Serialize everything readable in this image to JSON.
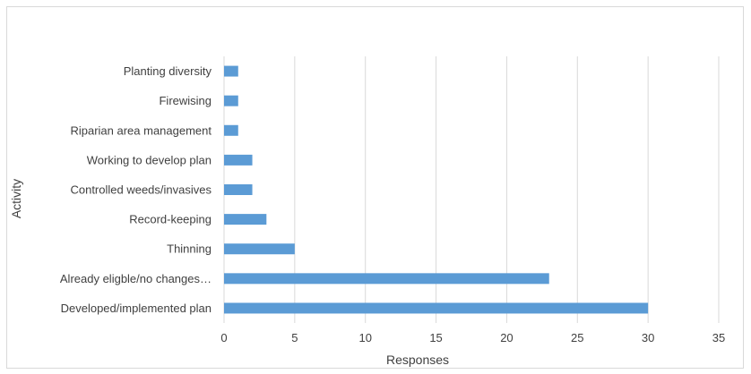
{
  "chart_data": {
    "type": "bar",
    "orientation": "horizontal",
    "categories": [
      "Planting diversity",
      "Firewising",
      "Riparian area management",
      "Working to develop plan",
      "Controlled weeds/invasives",
      "Record-keeping",
      "Thinning",
      "Already eligble/no changes…",
      "Developed/implemented plan"
    ],
    "values": [
      1,
      1,
      1,
      2,
      2,
      3,
      5,
      23,
      30
    ],
    "xlabel": "Responses",
    "ylabel": "Activity",
    "xlim": [
      0,
      35
    ],
    "xticks": [
      0,
      5,
      10,
      15,
      20,
      25,
      30,
      35
    ],
    "grid": "vertical",
    "legend": "none",
    "bar_color": "#5b9bd5",
    "grid_color": "#d9d9d9"
  }
}
